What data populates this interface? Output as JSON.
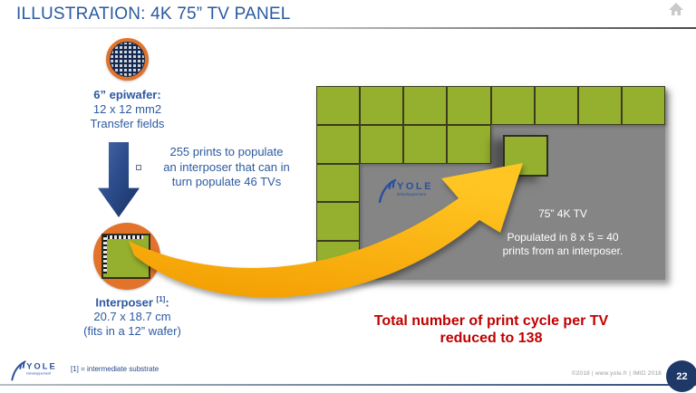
{
  "slide": {
    "title": "ILLUSTRATION: 4K 75” TV PANEL",
    "page_number": "22",
    "footnote": "[1] = intermediate substrate",
    "copyright": "©2018 | www.yole.fr | IMID 2018"
  },
  "logo": {
    "name": "YOLE",
    "sub": "Développement"
  },
  "epiwafer": {
    "line1": "6” epiwafer:",
    "line2": "12 x 12 mm2",
    "line3": "Transfer fields"
  },
  "prints_note": {
    "line1": "255 prints to populate",
    "line2": "an interposer that can in",
    "line3": "turn populate 46 TVs"
  },
  "interposer": {
    "name": "Interposer",
    "sup": "[1]",
    "suffix": ":",
    "line2": "20.7 x 18.7 cm",
    "line3": "(fits in a 12” wafer)"
  },
  "panel": {
    "tv_label": "75” 4K TV",
    "populated_line1": "Populated in 8 x 5 = 40",
    "populated_line2": "prints from an interposer.",
    "grid": {
      "cols": 8,
      "rows": 5,
      "filled": [
        [
          0,
          0
        ],
        [
          0,
          1
        ],
        [
          0,
          2
        ],
        [
          0,
          3
        ],
        [
          0,
          4
        ],
        [
          0,
          5
        ],
        [
          0,
          6
        ],
        [
          0,
          7
        ],
        [
          1,
          0
        ],
        [
          1,
          1
        ],
        [
          1,
          2
        ],
        [
          1,
          3
        ],
        [
          2,
          0
        ],
        [
          3,
          0
        ],
        [
          4,
          0
        ]
      ]
    }
  },
  "summary": {
    "line1": "Total number of print cycle per TV",
    "line2": "reduced to 138"
  },
  "colors": {
    "green": "#95b02f",
    "panel_gray": "#858585",
    "orange_circle": "#e2732b",
    "arrow_orange": "#fbb018",
    "blue_text": "#2d5aa0",
    "blue_arrow": "#2c4c8c",
    "red_text": "#c00000",
    "navy": "#1e3968"
  }
}
